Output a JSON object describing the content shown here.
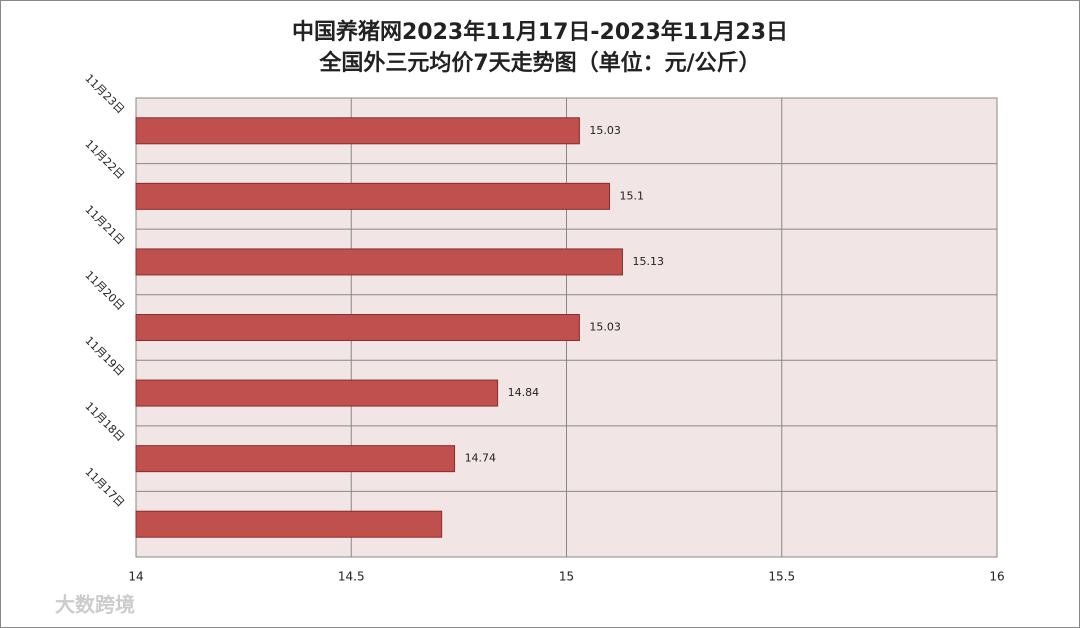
{
  "chart_data": {
    "type": "bar",
    "orientation": "horizontal",
    "title": "中国养猪网2023年11月17日-2023年11月23日",
    "subtitle": "全国外三元均价7天走势图（单位：元/公斤）",
    "categories": [
      "11月23日",
      "11月22日",
      "11月21日",
      "11月20日",
      "11月19日",
      "11月18日",
      "11月17日"
    ],
    "values": [
      15.03,
      15.1,
      15.13,
      15.03,
      14.84,
      14.74,
      14.71
    ],
    "value_labels": [
      "15.03",
      "15.1",
      "15.13",
      "15.03",
      "14.84",
      "14.74",
      null
    ],
    "color": "#c0504d",
    "xlim": [
      14,
      16
    ],
    "xticks": [
      14,
      14.5,
      15,
      15.5,
      16
    ],
    "grid": true
  },
  "watermark": "大数跨境"
}
